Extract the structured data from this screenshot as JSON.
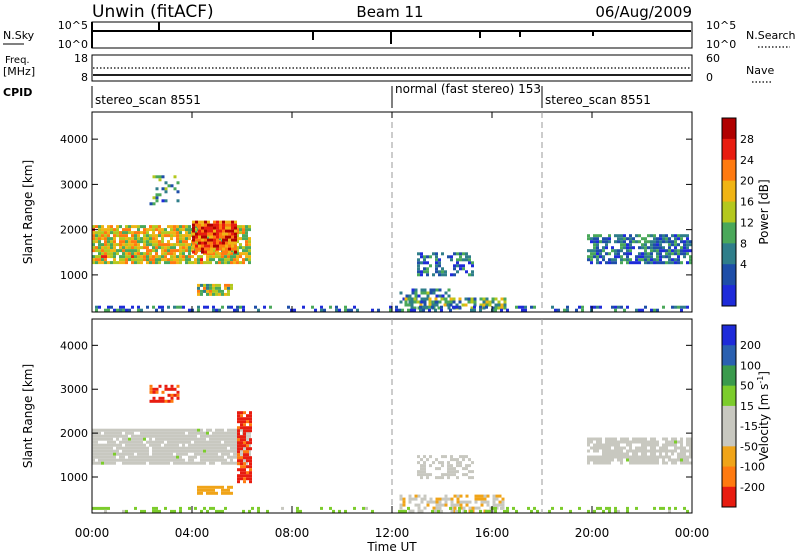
{
  "header": {
    "station": "Unwin (fitACF)",
    "beam": "Beam 11",
    "date": "06/Aug/2009"
  },
  "nsky_panel": {
    "left_label": "N.Sky",
    "right_label": "N.Search",
    "left_ticks": [
      "10^5",
      "10^0"
    ],
    "right_ticks": [
      "10^5",
      "10^0"
    ]
  },
  "freq_panel": {
    "left_label_top": "Freq.",
    "left_label_unit": "[MHz]",
    "right_label": "Nave",
    "left_ticks": [
      "18",
      "8"
    ],
    "right_ticks": [
      "60",
      "0"
    ]
  },
  "cpid_panel": {
    "label": "CPID",
    "segments": [
      {
        "label": "stereo_scan 8551",
        "start_hour": 0
      },
      {
        "label": "normal (fast stereo) 153",
        "start_hour": 12
      },
      {
        "label": "stereo_scan 8551",
        "start_hour": 18
      }
    ]
  },
  "colors": {
    "power": [
      "#1e2bd9",
      "#1e4ea8",
      "#2f7e8a",
      "#4aa85a",
      "#b4c81e",
      "#f0b414",
      "#ff7a10",
      "#e81c10",
      "#b00000"
    ],
    "velocity": [
      "#e81c10",
      "#ff7a10",
      "#f0a418",
      "#c8c8c0",
      "#c8c8c0",
      "#7ccc2c",
      "#3a9a4c",
      "#2a60b0",
      "#1e2bd9"
    ],
    "velocity_bins": [
      -250,
      -200,
      -100,
      -50,
      -15,
      15,
      50,
      100,
      200,
      250
    ],
    "grey": "#c8c8c0"
  },
  "chart_data": [
    {
      "type": "heatmap",
      "name": "power",
      "ylabel": "Slant Range [km]",
      "yticks": [
        1000,
        2000,
        3000,
        4000
      ],
      "ylim": [
        180,
        4600
      ],
      "xlim": [
        0,
        24
      ],
      "colorbar_label": "Power [dB]",
      "colorbar_ticks": [
        "28",
        "24",
        "20",
        "16",
        "12",
        "8",
        "4"
      ],
      "colorbar_range": [
        0,
        32
      ],
      "dashed_lines_hours": [
        12,
        18
      ],
      "regions": [
        {
          "hours": [
            0,
            6.3
          ],
          "range_km": [
            1300,
            2100
          ],
          "value_db": 18,
          "density": 0.85
        },
        {
          "hours": [
            4.0,
            5.8
          ],
          "range_km": [
            1500,
            2200
          ],
          "value_db": 25,
          "density": 0.9
        },
        {
          "hours": [
            2.3,
            3.4
          ],
          "range_km": [
            2600,
            3200
          ],
          "value_db": 10,
          "density": 0.25
        },
        {
          "hours": [
            4.2,
            5.6
          ],
          "range_km": [
            600,
            800
          ],
          "value_db": 16,
          "density": 0.9
        },
        {
          "hours": [
            12.3,
            14.3
          ],
          "range_km": [
            300,
            700
          ],
          "value_db": 8,
          "density": 0.5
        },
        {
          "hours": [
            13.0,
            15.2
          ],
          "range_km": [
            1000,
            1500
          ],
          "value_db": 7,
          "density": 0.5
        },
        {
          "hours": [
            12.5,
            16.5
          ],
          "range_km": [
            250,
            500
          ],
          "value_db": 12,
          "density": 0.6
        },
        {
          "hours": [
            19.8,
            24.0
          ],
          "range_km": [
            1300,
            1900
          ],
          "value_db": 7,
          "density": 0.75
        },
        {
          "hours": [
            0,
            24
          ],
          "range_km": [
            200,
            320
          ],
          "value_db": 6,
          "density": 0.35
        }
      ]
    },
    {
      "type": "heatmap",
      "name": "velocity",
      "ylabel": "Slant Range [km]",
      "yticks": [
        1000,
        2000,
        3000,
        4000
      ],
      "ylim": [
        180,
        4600
      ],
      "xlim": [
        0,
        24
      ],
      "xlabel": "Time UT",
      "xticks": [
        "00:00",
        "04:00",
        "08:00",
        "12:00",
        "16:00",
        "20:00",
        "00:00"
      ],
      "xtick_hours": [
        0,
        4,
        8,
        12,
        16,
        20,
        24
      ],
      "colorbar_label": "Velocity [m s^-1]",
      "colorbar_ticks": [
        "200",
        "100",
        "50",
        "15",
        "-15",
        "-50",
        "-100",
        "-200"
      ],
      "dashed_lines_hours": [
        12,
        18
      ],
      "regions": [
        {
          "hours": [
            0,
            6.3
          ],
          "range_km": [
            1300,
            2100
          ],
          "value_ms": 0,
          "density": 0.9
        },
        {
          "hours": [
            2.3,
            3.4
          ],
          "range_km": [
            2700,
            3100
          ],
          "value_ms": -220,
          "density": 0.6
        },
        {
          "hours": [
            5.8,
            6.4
          ],
          "range_km": [
            900,
            2500
          ],
          "value_ms": -220,
          "density": 0.7
        },
        {
          "hours": [
            4.2,
            5.6
          ],
          "range_km": [
            600,
            800
          ],
          "value_ms": -80,
          "density": 0.9
        },
        {
          "hours": [
            12.3,
            16.5
          ],
          "range_km": [
            250,
            600
          ],
          "value_ms": -40,
          "density": 0.6
        },
        {
          "hours": [
            13.0,
            15.2
          ],
          "range_km": [
            1000,
            1500
          ],
          "value_ms": 0,
          "density": 0.45
        },
        {
          "hours": [
            19.8,
            24.0
          ],
          "range_km": [
            1300,
            1900
          ],
          "value_ms": 0,
          "density": 0.8
        },
        {
          "hours": [
            0,
            24
          ],
          "range_km": [
            200,
            320
          ],
          "value_ms": 30,
          "density": 0.3
        }
      ]
    }
  ]
}
